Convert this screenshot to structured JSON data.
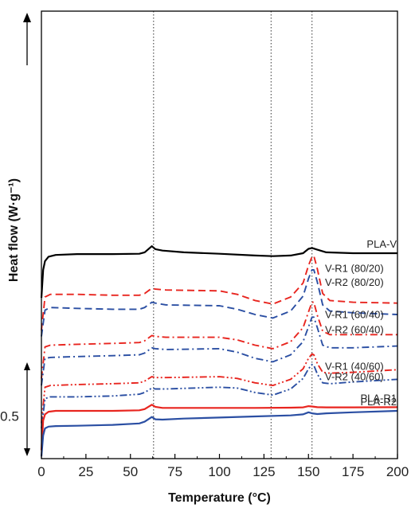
{
  "chart_data": {
    "type": "line",
    "title": "",
    "xlabel": "Temperature (°C)",
    "ylabel": "Heat flow (W·g⁻¹)",
    "xlim": [
      0,
      200
    ],
    "x_ticks": [
      "0",
      "25",
      "50",
      "75",
      "100",
      "125",
      "150",
      "175",
      "200"
    ],
    "y_ticks_shown": false,
    "grid": false,
    "reference_lines_x": [
      63,
      129,
      152
    ],
    "scale_bar": {
      "label": "0.5",
      "value": 0.5,
      "unit": "W·g⁻¹"
    },
    "arrow": "up",
    "series": [
      {
        "name": "PLA-V",
        "color": "#000000",
        "style": "solid",
        "offset": 9.45,
        "x": [
          0,
          1,
          2,
          4,
          8,
          20,
          40,
          55,
          58,
          62,
          64,
          68,
          80,
          100,
          120,
          130,
          140,
          147,
          150,
          152,
          155,
          160,
          175,
          200
        ],
        "y": [
          -1.0,
          0.6,
          1.1,
          1.35,
          1.45,
          1.5,
          1.5,
          1.52,
          1.6,
          1.95,
          1.78,
          1.7,
          1.6,
          1.52,
          1.42,
          1.38,
          1.42,
          1.55,
          1.8,
          1.85,
          1.75,
          1.6,
          1.55,
          1.55
        ]
      },
      {
        "name": "V-R1 (80/20)",
        "color": "#e8251f",
        "style": "dashed",
        "offset": 7.1,
        "x": [
          0,
          2,
          5,
          20,
          40,
          55,
          58,
          62,
          64,
          70,
          100,
          110,
          120,
          130,
          140,
          147,
          150,
          152,
          153,
          155,
          158,
          162,
          175,
          200
        ],
        "y": [
          -0.5,
          1.4,
          1.55,
          1.55,
          1.5,
          1.5,
          1.6,
          1.9,
          1.85,
          1.8,
          1.75,
          1.55,
          1.2,
          1.0,
          1.4,
          2.2,
          3.2,
          3.7,
          3.75,
          3.0,
          1.6,
          1.2,
          1.1,
          1.05
        ]
      },
      {
        "name": "V-R2 (80/20)",
        "color": "#2b4fa3",
        "style": "dashed",
        "offset": 6.75,
        "x": [
          0,
          2,
          5,
          20,
          40,
          55,
          58,
          62,
          64,
          70,
          100,
          110,
          120,
          130,
          140,
          147,
          150,
          152,
          153,
          155,
          158,
          162,
          175,
          200
        ],
        "y": [
          -0.5,
          1.0,
          1.15,
          1.1,
          1.05,
          1.05,
          1.15,
          1.45,
          1.4,
          1.3,
          1.25,
          1.05,
          0.75,
          0.55,
          0.95,
          1.8,
          2.8,
          3.3,
          3.3,
          2.6,
          1.3,
          0.95,
          0.85,
          0.75
        ]
      },
      {
        "name": "V-R1 (60/40)",
        "color": "#e8251f",
        "style": "dashdot",
        "offset": 4.35,
        "x": [
          0,
          2,
          5,
          20,
          40,
          55,
          58,
          62,
          64,
          70,
          100,
          110,
          120,
          130,
          140,
          147,
          150,
          152,
          153,
          155,
          158,
          162,
          175,
          200
        ],
        "y": [
          -0.5,
          1.3,
          1.4,
          1.45,
          1.5,
          1.55,
          1.65,
          1.95,
          1.9,
          1.85,
          1.85,
          1.7,
          1.4,
          1.2,
          1.6,
          2.4,
          3.3,
          3.85,
          3.85,
          3.1,
          2.2,
          2.0,
          2.0,
          2.0
        ]
      },
      {
        "name": "V-R2 (60/40)",
        "color": "#2b4fa3",
        "style": "dashdot",
        "offset": 3.95,
        "x": [
          0,
          2,
          5,
          20,
          40,
          55,
          58,
          62,
          64,
          70,
          100,
          110,
          120,
          130,
          140,
          147,
          150,
          152,
          153,
          155,
          158,
          162,
          175,
          200
        ],
        "y": [
          -0.5,
          1.05,
          1.1,
          1.15,
          1.2,
          1.25,
          1.35,
          1.65,
          1.6,
          1.55,
          1.6,
          1.4,
          1.05,
          0.85,
          1.25,
          2.0,
          2.85,
          3.4,
          3.4,
          2.8,
          1.8,
          1.65,
          1.65,
          1.75
        ]
      },
      {
        "name": "V-R1 (40/60)",
        "color": "#e8251f",
        "style": "dashdotdot",
        "offset": 1.8,
        "x": [
          0,
          2,
          5,
          20,
          40,
          55,
          58,
          62,
          64,
          70,
          100,
          110,
          120,
          130,
          140,
          147,
          150,
          152,
          153,
          155,
          158,
          162,
          175,
          200
        ],
        "y": [
          -0.5,
          1.55,
          1.65,
          1.7,
          1.75,
          1.8,
          1.9,
          2.15,
          2.1,
          2.1,
          2.15,
          2.05,
          1.8,
          1.65,
          2.0,
          2.6,
          3.2,
          3.45,
          3.4,
          2.9,
          2.4,
          2.35,
          2.4,
          2.55
        ]
      },
      {
        "name": "V-R2 (40/60)",
        "color": "#2b4fa3",
        "style": "dashdotdot",
        "offset": 1.5,
        "x": [
          0,
          2,
          5,
          20,
          40,
          55,
          58,
          62,
          64,
          70,
          100,
          110,
          120,
          130,
          140,
          147,
          150,
          152,
          153,
          155,
          158,
          162,
          175,
          200
        ],
        "y": [
          -0.5,
          1.2,
          1.3,
          1.3,
          1.35,
          1.45,
          1.55,
          1.8,
          1.75,
          1.75,
          1.85,
          1.8,
          1.55,
          1.4,
          1.75,
          2.35,
          2.9,
          3.15,
          3.1,
          2.6,
          2.1,
          2.05,
          2.15,
          2.3
        ]
      },
      {
        "name": "PLA-R1",
        "color": "#e8251f",
        "style": "solid",
        "offset": 0.35,
        "x": [
          0,
          1,
          2,
          4,
          8,
          20,
          40,
          55,
          58,
          62,
          64,
          68,
          80,
          100,
          120,
          140,
          147,
          150,
          152,
          155,
          160,
          175,
          200
        ],
        "y": [
          -0.6,
          1.1,
          1.45,
          1.6,
          1.65,
          1.65,
          1.65,
          1.68,
          1.75,
          2.0,
          1.88,
          1.82,
          1.82,
          1.82,
          1.82,
          1.83,
          1.85,
          1.92,
          1.9,
          1.86,
          1.85,
          1.85,
          1.86
        ]
      },
      {
        "name": "PLA-R2",
        "color": "#2b4fa3",
        "style": "solid",
        "offset": 0.0,
        "x": [
          0,
          1,
          2,
          4,
          8,
          20,
          40,
          55,
          58,
          62,
          64,
          68,
          80,
          100,
          120,
          140,
          147,
          150,
          152,
          155,
          160,
          175,
          200
        ],
        "y": [
          -0.6,
          0.6,
          1.0,
          1.1,
          1.13,
          1.15,
          1.2,
          1.28,
          1.38,
          1.65,
          1.52,
          1.5,
          1.56,
          1.62,
          1.68,
          1.74,
          1.8,
          1.92,
          1.86,
          1.82,
          1.86,
          1.92,
          2.0
        ]
      }
    ]
  }
}
